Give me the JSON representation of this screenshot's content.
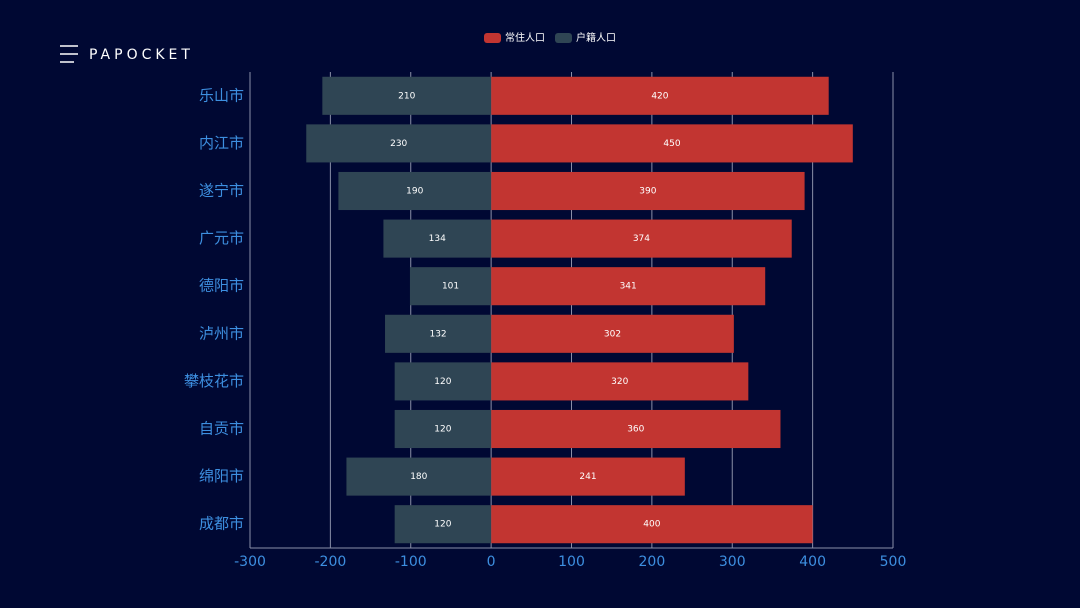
{
  "brand": "PAPOCKET",
  "chart_data": {
    "type": "bar",
    "orientation": "horizontal",
    "categories": [
      "乐山市",
      "内江市",
      "遂宁市",
      "广元市",
      "德阳市",
      "泸州市",
      "攀枝花市",
      "自贡市",
      "绵阳市",
      "成都市"
    ],
    "series": [
      {
        "name": "常住人口",
        "color": "#c23531",
        "values": [
          420,
          450,
          390,
          374,
          341,
          302,
          320,
          360,
          241,
          400
        ]
      },
      {
        "name": "户籍人口",
        "color": "#2f4554",
        "values": [
          -210,
          -230,
          -190,
          -134,
          -101,
          -132,
          -120,
          -120,
          -180,
          -120
        ],
        "value_labels": [
          "210",
          "230",
          "190",
          "134",
          "101",
          "132",
          "120",
          "120",
          "180",
          "120"
        ]
      }
    ],
    "xlim": [
      -300,
      500
    ],
    "xticks": [
      -300,
      -200,
      -100,
      0,
      100,
      200,
      300,
      400,
      500
    ],
    "grid": true,
    "legend": "top"
  }
}
